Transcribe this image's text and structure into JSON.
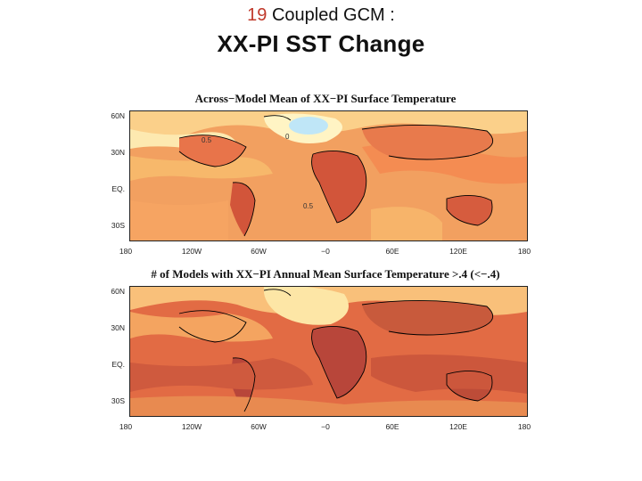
{
  "slide": {
    "title_num": "19",
    "title_rest": " Coupled GCM :",
    "subtitle": "XX-PI SST Change"
  },
  "maps": [
    {
      "title": "Across−Model Mean of XX−PI Surface Temperature",
      "contour_labels": [
        "0.5",
        "0",
        "0.5"
      ]
    },
    {
      "title": "# of Models with XX−PI Annual Mean Surface Temperature >.4 (<−.4)"
    }
  ],
  "axes": {
    "lat_labels": [
      "60N",
      "30N",
      "EQ.",
      "30S"
    ],
    "lon_labels": [
      "180",
      "120W",
      "60W",
      "−0",
      "60E",
      "120E",
      "180"
    ]
  },
  "colors": {
    "light_yellow": "#fff3b8",
    "yellow": "#fde08a",
    "light_orange": "#f9b86a",
    "orange": "#f08a4b",
    "red_orange": "#e06440",
    "dark_red": "#c24a34",
    "light_blue": "#bfe6f7",
    "coast": "#000000"
  }
}
